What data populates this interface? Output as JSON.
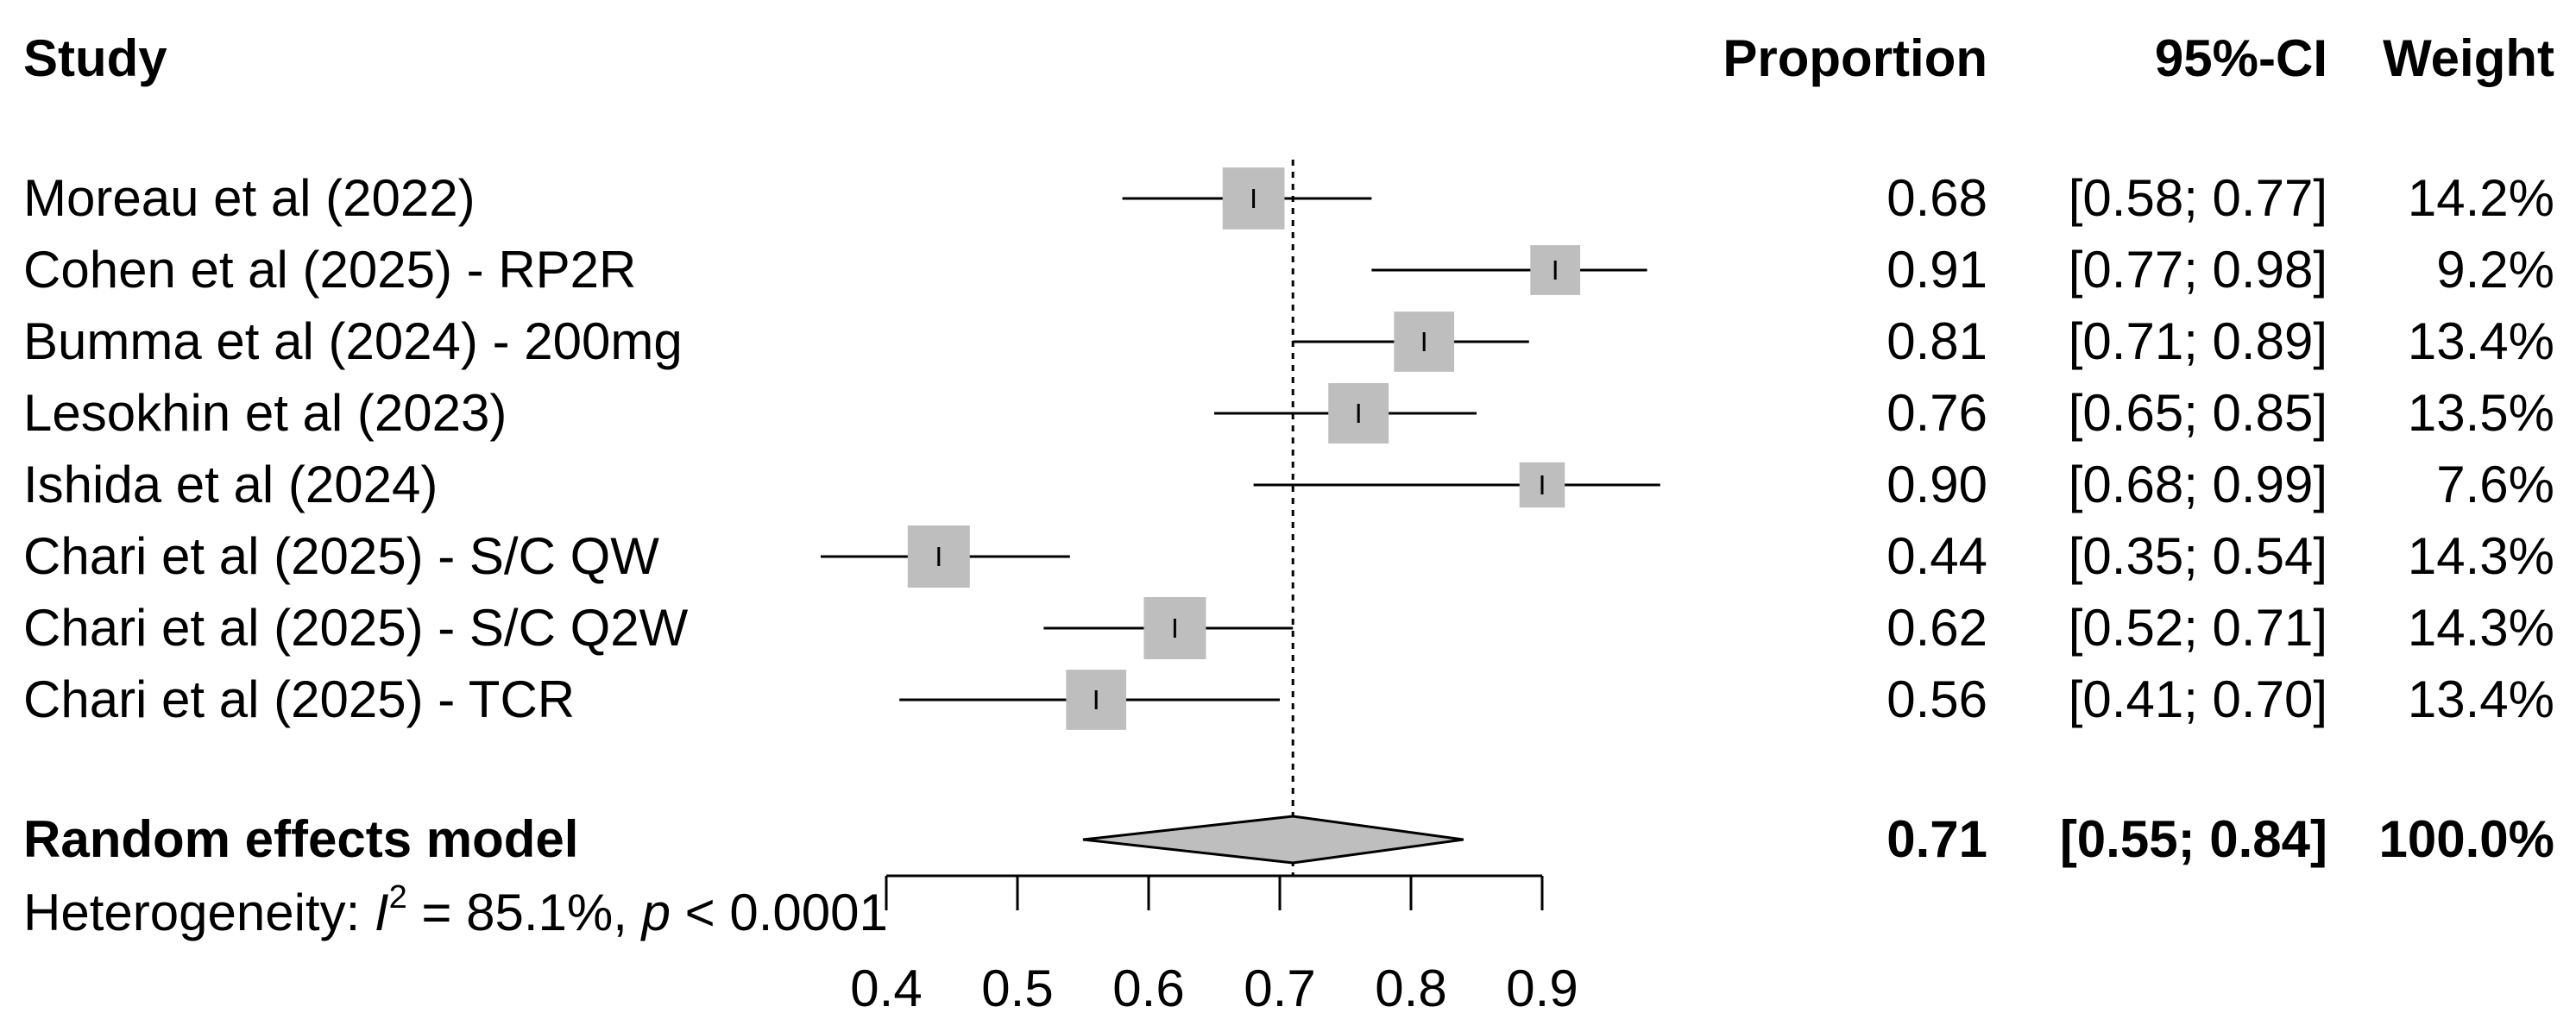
{
  "headers": {
    "study": "Study",
    "proportion": "Proportion",
    "ci": "95%-CI",
    "weight": "Weight"
  },
  "chart_data": {
    "type": "forest",
    "studies": [
      {
        "name": "Moreau et al (2022)",
        "proportion": 0.68,
        "lower": 0.58,
        "upper": 0.77,
        "proportion_text": "0.68",
        "ci_text": "[0.58; 0.77]",
        "weight_text": "14.2%",
        "weight": 14.2
      },
      {
        "name": "Cohen et al (2025) - RP2R",
        "proportion": 0.91,
        "lower": 0.77,
        "upper": 0.98,
        "proportion_text": "0.91",
        "ci_text": "[0.77; 0.98]",
        "weight_text": "9.2%",
        "weight": 9.2
      },
      {
        "name": "Bumma et al (2024) - 200mg",
        "proportion": 0.81,
        "lower": 0.71,
        "upper": 0.89,
        "proportion_text": "0.81",
        "ci_text": "[0.71; 0.89]",
        "weight_text": "13.4%",
        "weight": 13.4
      },
      {
        "name": "Lesokhin et al (2023)",
        "proportion": 0.76,
        "lower": 0.65,
        "upper": 0.85,
        "proportion_text": "0.76",
        "ci_text": "[0.65; 0.85]",
        "weight_text": "13.5%",
        "weight": 13.5
      },
      {
        "name": "Ishida et al (2024)",
        "proportion": 0.9,
        "lower": 0.68,
        "upper": 0.99,
        "proportion_text": "0.90",
        "ci_text": "[0.68; 0.99]",
        "weight_text": "7.6%",
        "weight": 7.6
      },
      {
        "name": "Chari et al (2025) - S/C QW",
        "proportion": 0.44,
        "lower": 0.35,
        "upper": 0.54,
        "proportion_text": "0.44",
        "ci_text": "[0.35; 0.54]",
        "weight_text": "14.3%",
        "weight": 14.3
      },
      {
        "name": "Chari et al (2025) - S/C Q2W",
        "proportion": 0.62,
        "lower": 0.52,
        "upper": 0.71,
        "proportion_text": "0.62",
        "ci_text": "[0.52; 0.71]",
        "weight_text": "14.3%",
        "weight": 14.3
      },
      {
        "name": "Chari et al (2025) - TCR",
        "proportion": 0.56,
        "lower": 0.41,
        "upper": 0.7,
        "proportion_text": "0.56",
        "ci_text": "[0.41; 0.70]",
        "weight_text": "13.4%",
        "weight": 13.4
      }
    ],
    "pooled": {
      "name": "Random effects model",
      "proportion": 0.71,
      "lower": 0.55,
      "upper": 0.84,
      "proportion_text": "0.71",
      "ci_text": "[0.55; 0.84]",
      "weight_text": "100.0%"
    },
    "heterogeneity": {
      "prefix": "Heterogeneity: ",
      "i_symbol": "I",
      "i_sup": "2",
      "i_value": " = 85.1%, ",
      "p_symbol": "p",
      "p_value": " < 0.0001"
    },
    "x_axis": {
      "ticks": [
        0.4,
        0.5,
        0.6,
        0.7,
        0.8,
        0.9
      ],
      "tick_labels": [
        "0.4",
        "0.5",
        "0.6",
        "0.7",
        "0.8",
        "0.9"
      ]
    },
    "reference_line": 0.71,
    "colors": {
      "box": "#bebebe",
      "diamond": "#bebebe",
      "line": "#000000"
    }
  }
}
